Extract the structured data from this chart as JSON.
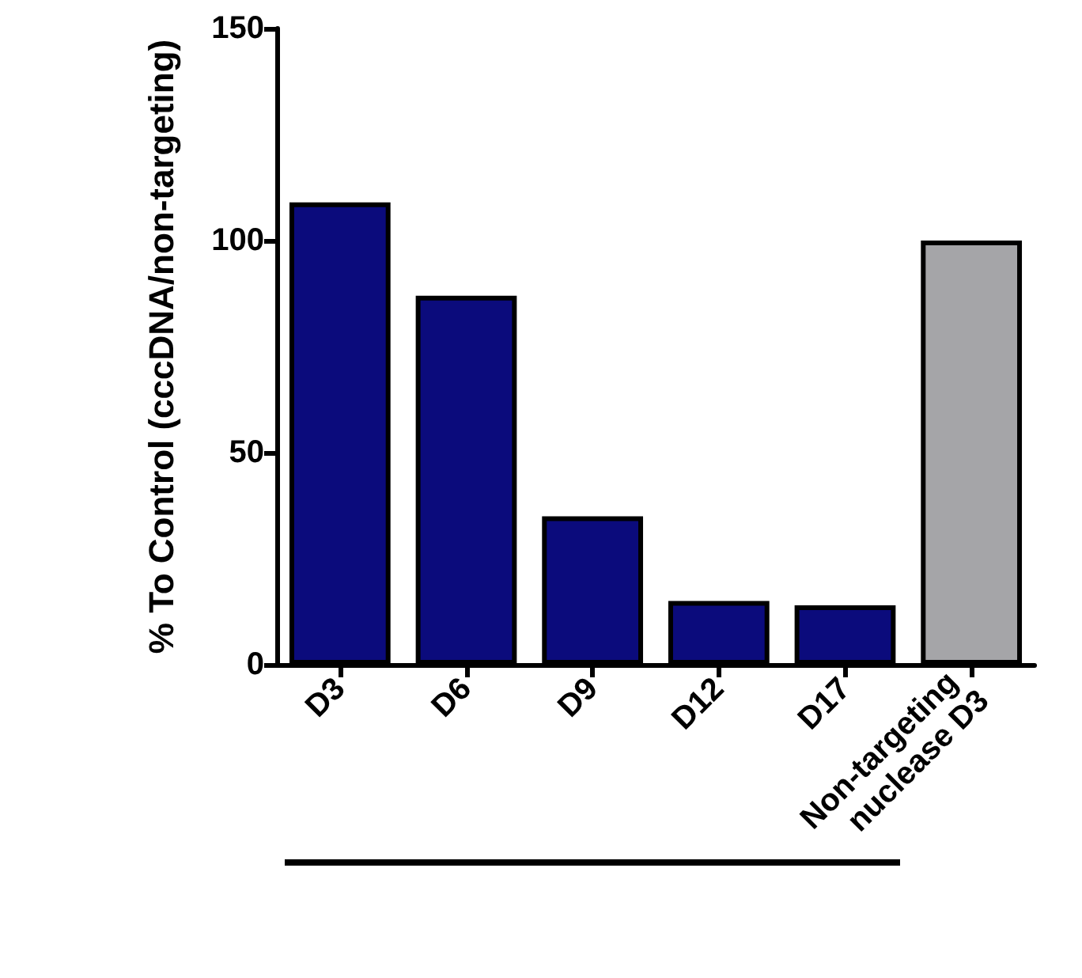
{
  "chart_data": {
    "type": "bar",
    "ylabel": "% To Control (cccDNA/non-targeting)",
    "categories": [
      "D3",
      "D6",
      "D9",
      "D12",
      "D17",
      "Non-targeting nuclease D3"
    ],
    "values": [
      109,
      87,
      35,
      15,
      14,
      100
    ],
    "colors": [
      "#0b0b7c",
      "#0b0b7c",
      "#0b0b7c",
      "#0b0b7c",
      "#0b0b7c",
      "#a5a5a8"
    ],
    "ylim": [
      0,
      150
    ],
    "yticks": [
      0,
      50,
      100,
      150
    ],
    "grid": false
  }
}
